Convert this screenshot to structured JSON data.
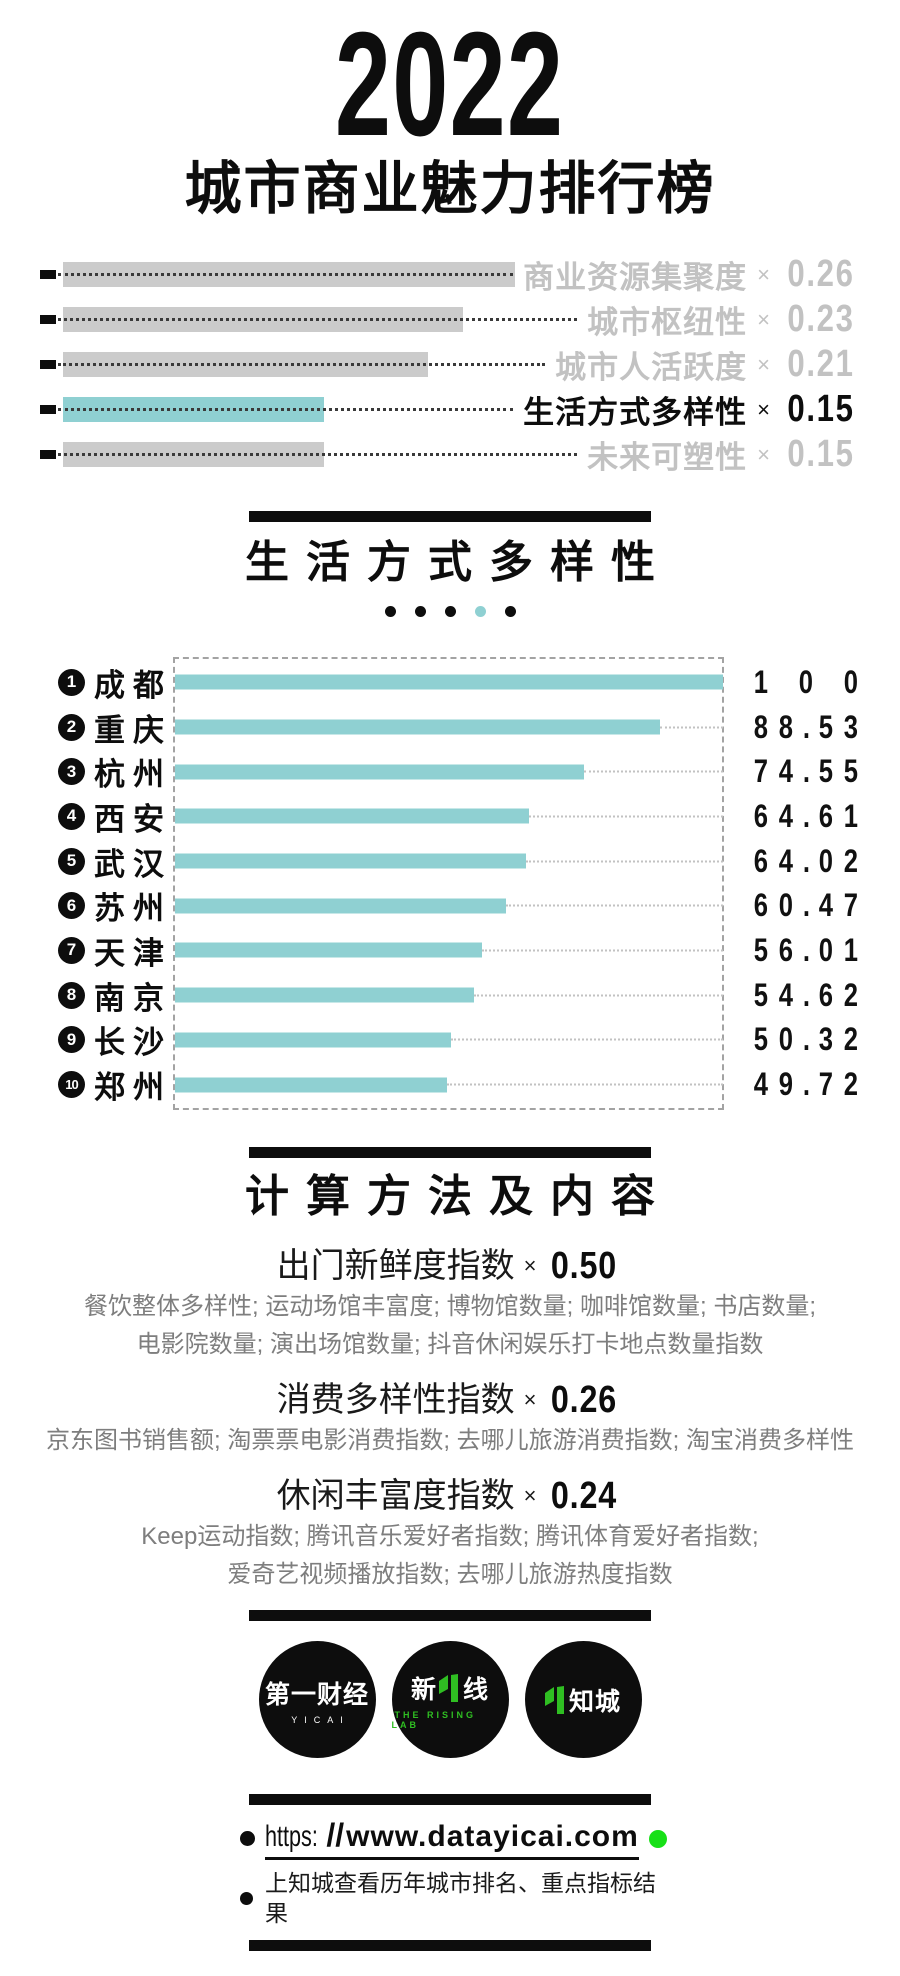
{
  "title": {
    "year": "2022",
    "subtitle": "城市商业魅力排行榜"
  },
  "times_symbol": "×",
  "colors": {
    "teal": "#8fd0d2",
    "gray_bar": "#cbcbcb",
    "gray_label": "#c2c2c2",
    "detail_text": "#7e7e7e",
    "logo_green": "#2fbe22",
    "footer_green_dot": "#17e017",
    "black": "#0d0d0d"
  },
  "chart_data": [
    {
      "type": "bar",
      "name": "index-weights",
      "orientation": "horizontal",
      "categories": [
        "商业资源集聚度",
        "城市枢纽性",
        "城市人活跃度",
        "生活方式多样性",
        "未来可塑性"
      ],
      "values": [
        0.26,
        0.23,
        0.21,
        0.15,
        0.15
      ],
      "value_labels": [
        "0.26",
        "0.23",
        "0.21",
        "0.15",
        "0.15"
      ],
      "highlight_index": 3,
      "highlight_color": "#8fd0d2",
      "bar_color": "#cbcbcb",
      "xlim": [
        0,
        0.26
      ],
      "grid": false,
      "legend": false
    },
    {
      "type": "bar",
      "name": "lifestyle-diversity-top10",
      "title": "生活方式多样性",
      "orientation": "horizontal",
      "ranks": [
        "1",
        "2",
        "3",
        "4",
        "5",
        "6",
        "7",
        "8",
        "9",
        "10"
      ],
      "categories": [
        "成都",
        "重庆",
        "杭州",
        "西安",
        "武汉",
        "苏州",
        "天津",
        "南京",
        "长沙",
        "郑州"
      ],
      "values": [
        100,
        88.53,
        74.55,
        64.61,
        64.02,
        60.47,
        56.01,
        54.62,
        50.32,
        49.72
      ],
      "value_labels": [
        "100",
        "88.53",
        "74.55",
        "64.61",
        "64.02",
        "60.47",
        "56.01",
        "54.62",
        "50.32",
        "49.72"
      ],
      "xlim": [
        0,
        100
      ],
      "bar_color": "#8fd0d2",
      "grid": false,
      "legend": false
    }
  ],
  "section": {
    "title": "生活方式多样性",
    "pager": {
      "count": 5,
      "active_index": 3,
      "active_color": "#8fd0d2"
    }
  },
  "methods": {
    "title": "计算方法及内容",
    "groups": [
      {
        "label": "出门新鲜度指数",
        "value": "0.50",
        "lines": [
          "餐饮整体多样性; 运动场馆丰富度; 博物馆数量; 咖啡馆数量; 书店数量;",
          "电影院数量; 演出场馆数量; 抖音休闲娱乐打卡地点数量指数"
        ]
      },
      {
        "label": "消费多样性指数",
        "value": "0.26",
        "lines": [
          "京东图书销售额; 淘票票电影消费指数; 去哪儿旅游消费指数; 淘宝消费多样性"
        ]
      },
      {
        "label": "休闲丰富度指数",
        "value": "0.24",
        "lines": [
          "Keep运动指数; 腾讯音乐爱好者指数; 腾讯体育爱好者指数;",
          "爱奇艺视频播放指数; 去哪儿旅游热度指数"
        ]
      }
    ]
  },
  "footer": {
    "logos": [
      {
        "line1": "第一财经",
        "line2": "YICAI"
      },
      {
        "left": "新",
        "right": "线",
        "line2": "THE RISING LAB"
      },
      {
        "line1": "知城"
      }
    ],
    "url": {
      "scheme": "https:",
      "slashes": "//",
      "domain": "www.datayicai.com"
    },
    "note": "上知城查看历年城市排名、重点指标结果"
  }
}
